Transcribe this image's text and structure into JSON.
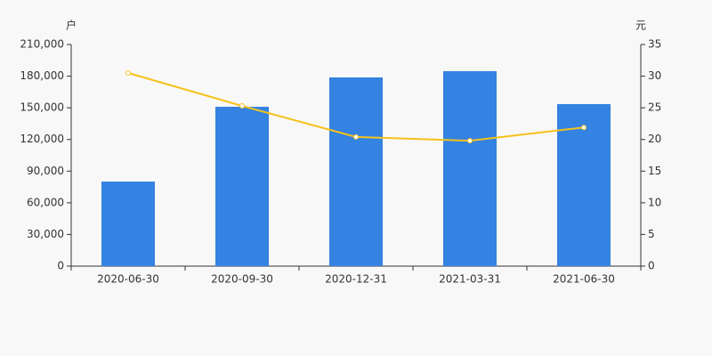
{
  "chart_data": {
    "type": "bar-line",
    "y_label": "户",
    "y2_label": "元",
    "categories": [
      "2020-06-30",
      "2020-09-30",
      "2020-12-31",
      "2021-03-31",
      "2021-06-30"
    ],
    "series": [
      {
        "type": "bar",
        "color": "#3482e2",
        "values": [
          80100,
          151000,
          178800,
          184700,
          153500
        ]
      },
      {
        "type": "line",
        "axis": "y2",
        "color": "#f5c21b",
        "values": [
          30.5,
          25.3,
          20.4,
          19.8,
          21.9
        ]
      }
    ],
    "ylim": [
      0,
      210000
    ],
    "yticks": [
      0,
      {
        "value": 30000,
        "label": "30,000"
      },
      {
        "value": 60000,
        "label": "60,000"
      },
      {
        "value": 90000,
        "label": "90,000"
      },
      {
        "value": 120000,
        "label": "120,000"
      },
      {
        "value": 150000,
        "label": "150,000"
      },
      {
        "value": 180000,
        "label": "180,000"
      },
      {
        "value": 210000,
        "label": "210,000"
      }
    ],
    "y2lim": [
      0,
      35
    ],
    "y2ticks": [
      0,
      5,
      10,
      15,
      20,
      25,
      30,
      35
    ]
  }
}
